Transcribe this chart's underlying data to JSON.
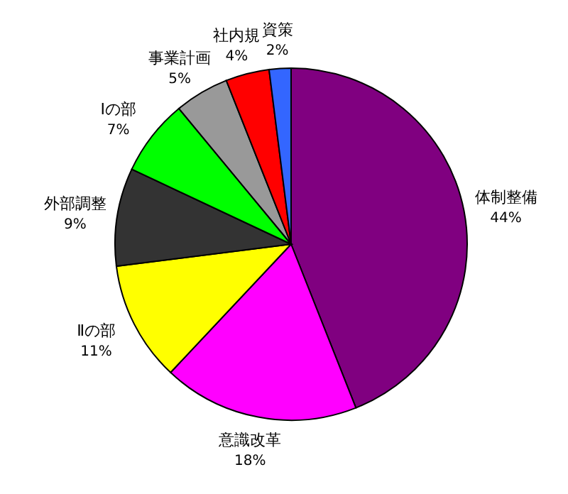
{
  "chart_data": {
    "type": "pie",
    "categories": [
      "体制整備",
      "意識改革",
      "Ⅱの部",
      "外部調整",
      "Ⅰの部",
      "事業計画",
      "社内規",
      "資策"
    ],
    "values": [
      44,
      18,
      11,
      9,
      7,
      5,
      4,
      2
    ],
    "value_labels": [
      "44%",
      "18%",
      "11%",
      "9%",
      "7%",
      "5%",
      "4%",
      "2%"
    ],
    "colors": [
      "#800080",
      "#ff00ff",
      "#ffff00",
      "#333333",
      "#00ff00",
      "#999999",
      "#ff0000",
      "#3366ff"
    ]
  }
}
